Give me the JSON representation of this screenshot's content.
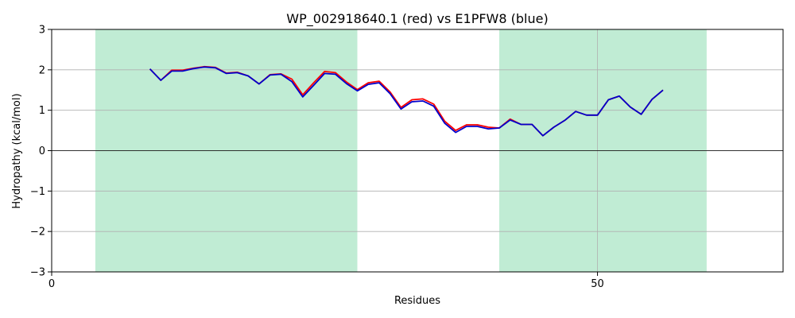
{
  "chart_data": {
    "type": "line",
    "title": "WP_002918640.1 (red) vs E1PFW8 (blue)",
    "xlabel": "Residues",
    "ylabel": "Hydropathy (kcal/mol)",
    "xlim": [
      0,
      67
    ],
    "ylim": [
      -3,
      3
    ],
    "x_ticks": [
      0,
      50
    ],
    "y_ticks": [
      -3,
      -2,
      -1,
      0,
      1,
      2,
      3
    ],
    "grid": true,
    "zero_line": true,
    "shaded_regions": [
      {
        "x_start": 4,
        "x_end": 28,
        "color": "#c0ecd4"
      },
      {
        "x_start": 41,
        "x_end": 60,
        "color": "#c0ecd4"
      }
    ],
    "series": [
      {
        "color": "#ff0000",
        "x": [
          9,
          10,
          11,
          12,
          13,
          14,
          15,
          16,
          17,
          18,
          19,
          20,
          21,
          22,
          23,
          24,
          25,
          26,
          27,
          28,
          29,
          30,
          31,
          32,
          33,
          34,
          35,
          36,
          37,
          38,
          39,
          40,
          41,
          42,
          43,
          44,
          45,
          46,
          47,
          48,
          49,
          50,
          51,
          52,
          53,
          54,
          55,
          56
        ],
        "values": [
          2.02,
          1.74,
          1.99,
          1.99,
          2.04,
          2.08,
          2.06,
          1.92,
          1.94,
          1.85,
          1.65,
          1.88,
          1.9,
          1.77,
          1.38,
          1.68,
          1.96,
          1.93,
          1.7,
          1.51,
          1.68,
          1.72,
          1.45,
          1.07,
          1.26,
          1.28,
          1.15,
          0.73,
          0.5,
          0.64,
          0.64,
          0.58,
          0.56,
          0.78,
          0.65,
          0.65,
          0.37,
          0.58,
          0.75,
          0.97,
          0.88,
          0.88,
          1.26,
          1.35,
          1.08,
          0.9,
          1.27,
          1.5
        ]
      },
      {
        "color": "#0000cc",
        "x": [
          9,
          10,
          11,
          12,
          13,
          14,
          15,
          16,
          17,
          18,
          19,
          20,
          21,
          22,
          23,
          24,
          25,
          26,
          27,
          28,
          29,
          30,
          31,
          32,
          33,
          34,
          35,
          36,
          37,
          38,
          39,
          40,
          41,
          42,
          43,
          44,
          45,
          46,
          47,
          48,
          49,
          50,
          51,
          52,
          53,
          54,
          55,
          56
        ],
        "values": [
          2.02,
          1.74,
          1.97,
          1.97,
          2.03,
          2.07,
          2.05,
          1.91,
          1.93,
          1.85,
          1.65,
          1.87,
          1.89,
          1.71,
          1.33,
          1.62,
          1.91,
          1.89,
          1.66,
          1.48,
          1.64,
          1.68,
          1.41,
          1.03,
          1.21,
          1.23,
          1.1,
          0.68,
          0.45,
          0.6,
          0.6,
          0.54,
          0.56,
          0.76,
          0.65,
          0.65,
          0.37,
          0.58,
          0.75,
          0.97,
          0.88,
          0.88,
          1.26,
          1.35,
          1.08,
          0.9,
          1.27,
          1.5
        ]
      }
    ]
  }
}
